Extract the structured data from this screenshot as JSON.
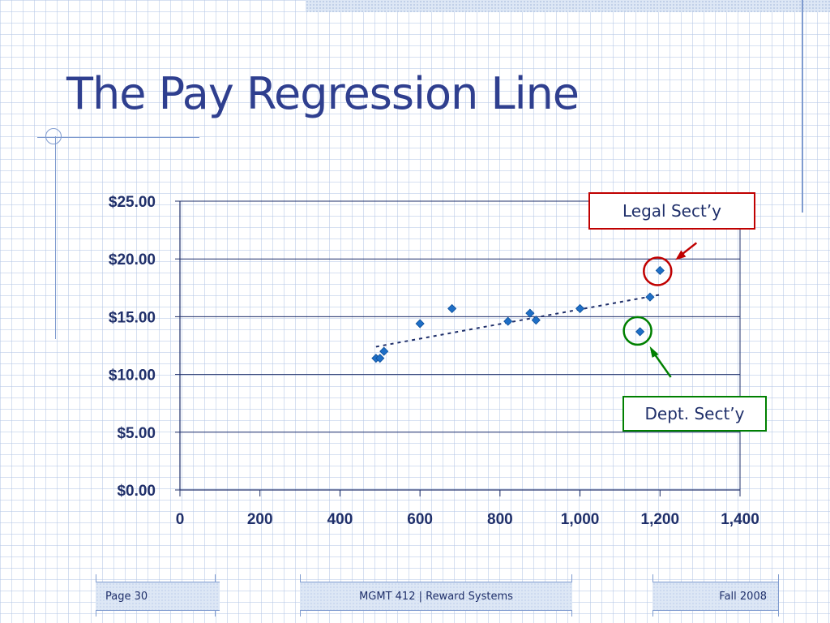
{
  "slide": {
    "title": "The Pay Regression Line"
  },
  "callouts": {
    "legal": "Legal Sect’y",
    "dept": "Dept. Sect’y"
  },
  "footer": {
    "page": "Page 30",
    "course": "MGMT 412  |  Reward Systems",
    "term": "Fall 2008"
  },
  "colors": {
    "title": "#2f3f8f",
    "points": "#1f6fc6",
    "legal_highlight": "#c00000",
    "dept_highlight": "#008000",
    "axis_text": "#1f2f6a"
  },
  "chart_data": {
    "type": "scatter",
    "title": "",
    "xlabel": "",
    "ylabel": "",
    "xlim": [
      0,
      1400
    ],
    "ylim": [
      0,
      25
    ],
    "x_ticks": [
      "0",
      "200",
      "400",
      "600",
      "800",
      "1,000",
      "1,200",
      "1,400"
    ],
    "x_tick_values": [
      0,
      200,
      400,
      600,
      800,
      1000,
      1200,
      1400
    ],
    "y_ticks": [
      "$0.00",
      "$5.00",
      "$10.00",
      "$15.00",
      "$20.00",
      "$25.00"
    ],
    "y_tick_values": [
      0,
      5,
      10,
      15,
      20,
      25
    ],
    "grid": "horizontal",
    "series": [
      {
        "points": [
          {
            "x": 490,
            "y": 11.4
          },
          {
            "x": 500,
            "y": 11.4
          },
          {
            "x": 510,
            "y": 12.0
          },
          {
            "x": 600,
            "y": 14.4
          },
          {
            "x": 680,
            "y": 15.7
          },
          {
            "x": 820,
            "y": 14.6
          },
          {
            "x": 875,
            "y": 15.3
          },
          {
            "x": 890,
            "y": 14.7
          },
          {
            "x": 1000,
            "y": 15.7
          },
          {
            "x": 1150,
            "y": 13.7
          },
          {
            "x": 1175,
            "y": 16.7
          },
          {
            "x": 1200,
            "y": 19.0
          }
        ]
      }
    ],
    "trendline": {
      "x_start": 490,
      "y_start": 12.4,
      "x_end": 1200,
      "y_end": 16.9
    },
    "highlights": [
      {
        "label": "Legal Sect’y",
        "x": 1200,
        "y": 19.0,
        "color": "red"
      },
      {
        "label": "Dept. Sect’y",
        "x": 1150,
        "y": 13.7,
        "color": "green"
      }
    ]
  }
}
